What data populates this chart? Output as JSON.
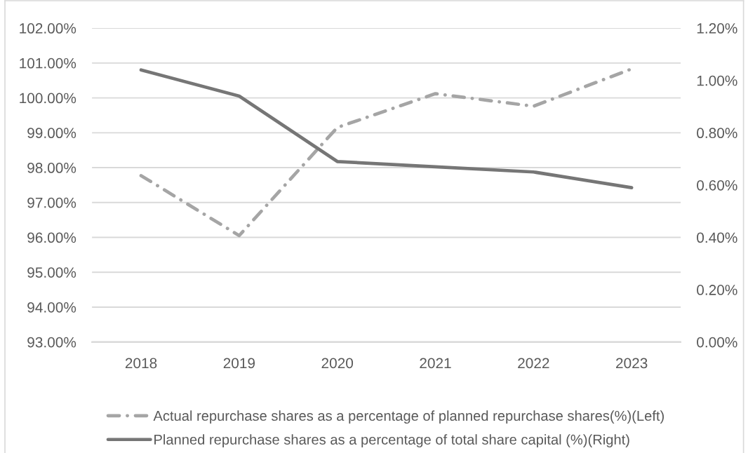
{
  "chart_data": {
    "type": "line",
    "categories": [
      "2018",
      "2019",
      "2020",
      "2021",
      "2022",
      "2023"
    ],
    "series": [
      {
        "name": "Actual repurchase shares as a percentage of planned repurchase shares(%)(Left)",
        "color": "#a5a5a5",
        "values": [
          97.77,
          96.05,
          99.15,
          100.12,
          99.76,
          100.83
        ],
        "line_style": "dashdot"
      },
      {
        "name": "Planned repurchase shares as a percentage of total share capital (%)(Right)",
        "color": "#767676",
        "values": [
          1.04,
          0.94,
          0.69,
          0.67,
          0.65,
          0.59
        ],
        "axis": "y2",
        "line_style": "solid"
      }
    ],
    "ylim": [
      93,
      102
    ],
    "yticks": [
      {
        "value": 93,
        "label": "93.00%"
      },
      {
        "value": 94,
        "label": "94.00%"
      },
      {
        "value": 95,
        "label": "95.00%"
      },
      {
        "value": 96,
        "label": "96.00%"
      },
      {
        "value": 97,
        "label": "97.00%"
      },
      {
        "value": 98,
        "label": "98.00%"
      },
      {
        "value": 99,
        "label": "99.00%"
      },
      {
        "value": 100,
        "label": "100.00%"
      },
      {
        "value": 101,
        "label": "101.00%"
      },
      {
        "value": 102,
        "label": "102.00%"
      }
    ],
    "y2lim": [
      0,
      1.2
    ],
    "y2ticks": [
      {
        "value": 0,
        "label": "0.00%"
      },
      {
        "value": 0.2,
        "label": "0.20%"
      },
      {
        "value": 0.4,
        "label": "0.40%"
      },
      {
        "value": 0.6,
        "label": "0.60%"
      },
      {
        "value": 0.8,
        "label": "0.80%"
      },
      {
        "value": 1.0,
        "label": "1.00%"
      },
      {
        "value": 1.2,
        "label": "1.20%"
      }
    ],
    "grid": "y",
    "legend": "bottom"
  }
}
